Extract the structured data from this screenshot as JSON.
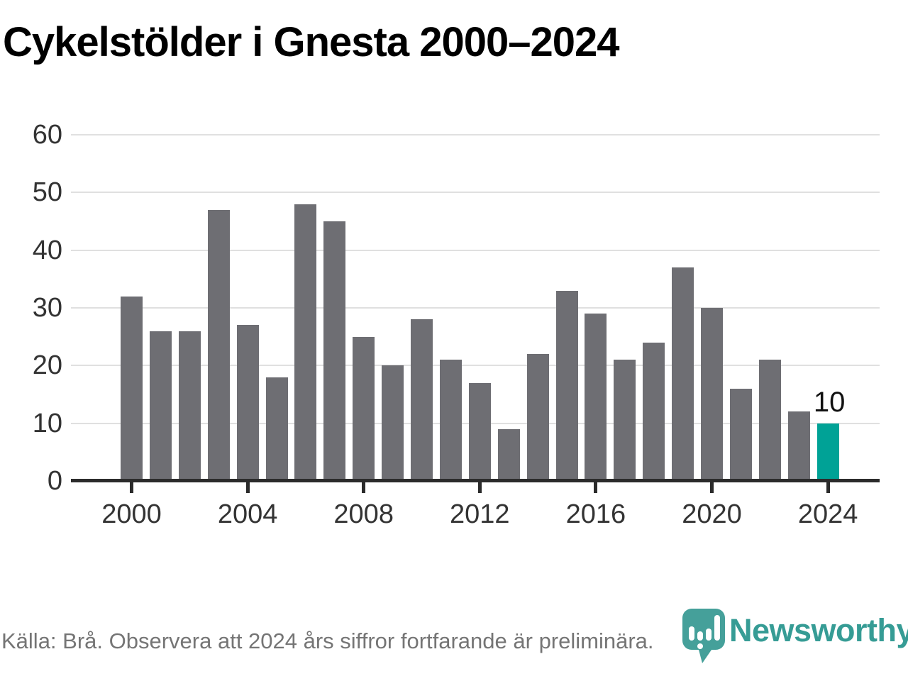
{
  "title": "Cykelstölder i Gnesta 2000–2024",
  "footer": {
    "source_note": "Källa: Brå. Observera att 2024 års siffror fortfarande är preliminära."
  },
  "branding": {
    "wordmark": "Newsworthy",
    "icon": "newsworthy-speech-bubble-bar-chart-icon"
  },
  "colors": {
    "background": "#ffffff",
    "bar": "#6e6e73",
    "highlight": "#00a296",
    "axis": "#2b2b2b",
    "grid": "#e0e0e0",
    "tick_label": "#333333",
    "title_text": "#000000",
    "data_label_text": "#111111",
    "footer_text": "#757575",
    "logo_teal": "#369c95"
  },
  "chart_data": {
    "type": "bar",
    "title": "Cykelstölder i Gnesta 2000–2024",
    "x": [
      2000,
      2001,
      2002,
      2003,
      2004,
      2005,
      2006,
      2007,
      2008,
      2009,
      2010,
      2011,
      2012,
      2013,
      2014,
      2015,
      2016,
      2017,
      2018,
      2019,
      2020,
      2021,
      2022,
      2023,
      2024
    ],
    "values": [
      32,
      26,
      26,
      47,
      27,
      18,
      48,
      45,
      25,
      20,
      28,
      21,
      17,
      9,
      22,
      33,
      29,
      21,
      24,
      37,
      30,
      16,
      21,
      12,
      10
    ],
    "highlight_index": 24,
    "data_label": {
      "index": 24,
      "text": "10"
    },
    "y_ticks": [
      0,
      10,
      20,
      30,
      40,
      50,
      60
    ],
    "x_ticks": [
      2000,
      2004,
      2008,
      2012,
      2016,
      2020,
      2024
    ],
    "ylim": [
      0,
      60
    ],
    "xlabel": "",
    "ylabel": "",
    "grid": "horizontal",
    "legend": "none"
  }
}
